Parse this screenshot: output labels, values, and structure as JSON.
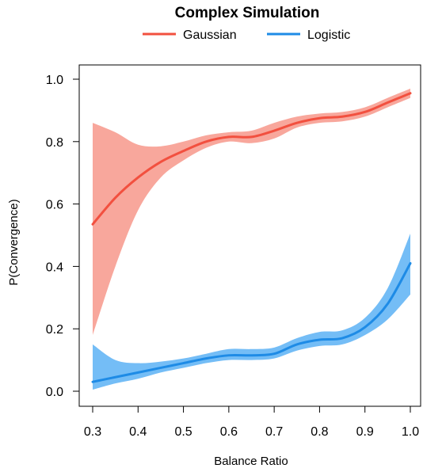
{
  "chart_data": {
    "type": "line",
    "title": "Complex Simulation",
    "xlabel": "Balance Ratio",
    "ylabel": "P(Convergence)",
    "xlim": [
      0.3,
      1.0
    ],
    "ylim": [
      0.0,
      1.0
    ],
    "x_ticks": [
      "0.3",
      "0.4",
      "0.5",
      "0.6",
      "0.7",
      "0.8",
      "0.9",
      "1.0"
    ],
    "y_ticks": [
      "0.0",
      "0.2",
      "0.4",
      "0.6",
      "0.8",
      "1.0"
    ],
    "grid": false,
    "legend_position": "top",
    "series": [
      {
        "name": "Gaussian",
        "color": "#f2503f",
        "band_color": "#f8a79c",
        "x": [
          0.3,
          0.35,
          0.4,
          0.45,
          0.5,
          0.55,
          0.6,
          0.65,
          0.7,
          0.75,
          0.8,
          0.85,
          0.9,
          0.95,
          1.0
        ],
        "y": [
          0.535,
          0.62,
          0.685,
          0.735,
          0.77,
          0.8,
          0.815,
          0.815,
          0.835,
          0.86,
          0.875,
          0.88,
          0.895,
          0.925,
          0.955
        ],
        "lower": [
          0.18,
          0.4,
          0.58,
          0.685,
          0.74,
          0.78,
          0.8,
          0.795,
          0.81,
          0.845,
          0.86,
          0.865,
          0.88,
          0.91,
          0.94
        ],
        "upper": [
          0.86,
          0.83,
          0.79,
          0.785,
          0.8,
          0.82,
          0.83,
          0.835,
          0.86,
          0.88,
          0.89,
          0.895,
          0.91,
          0.94,
          0.97
        ]
      },
      {
        "name": "Logistic",
        "color": "#1e8be6",
        "band_color": "#74bdf6",
        "x": [
          0.3,
          0.35,
          0.4,
          0.45,
          0.5,
          0.55,
          0.6,
          0.65,
          0.7,
          0.75,
          0.8,
          0.85,
          0.9,
          0.95,
          1.0
        ],
        "y": [
          0.03,
          0.045,
          0.06,
          0.075,
          0.09,
          0.105,
          0.115,
          0.115,
          0.12,
          0.15,
          0.165,
          0.17,
          0.205,
          0.28,
          0.41
        ],
        "lower": [
          0.005,
          0.025,
          0.04,
          0.06,
          0.075,
          0.09,
          0.1,
          0.1,
          0.105,
          0.13,
          0.145,
          0.15,
          0.18,
          0.23,
          0.31
        ],
        "upper": [
          0.15,
          0.1,
          0.09,
          0.095,
          0.105,
          0.12,
          0.135,
          0.135,
          0.14,
          0.17,
          0.19,
          0.195,
          0.235,
          0.33,
          0.505
        ]
      }
    ]
  }
}
